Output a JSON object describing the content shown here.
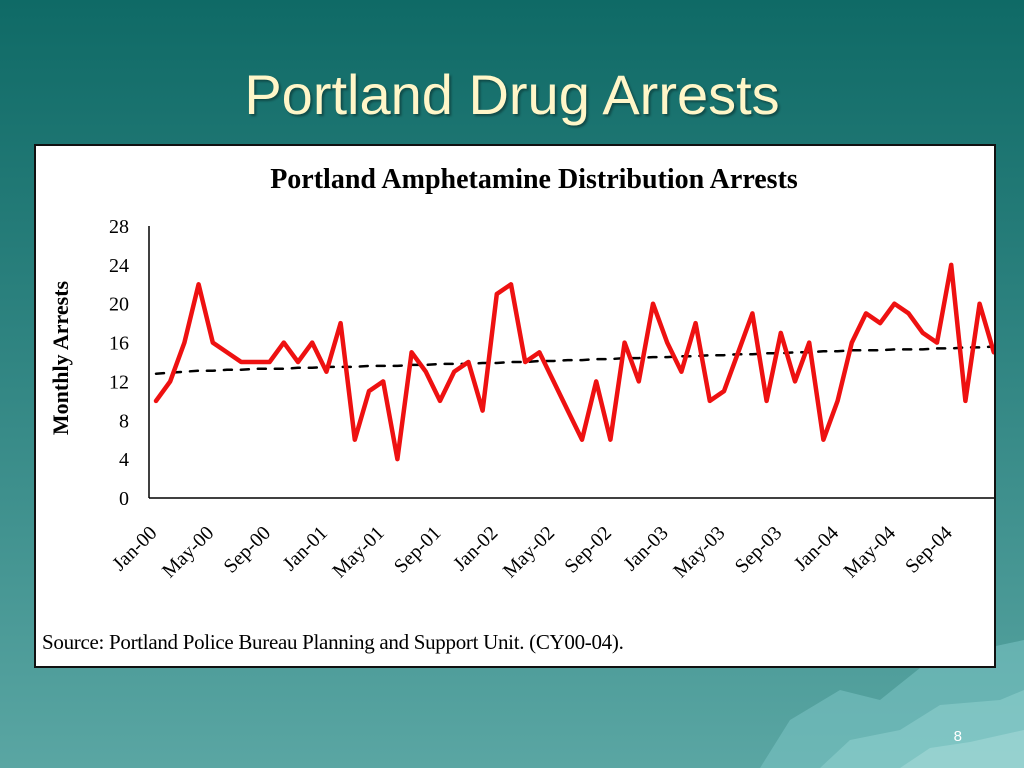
{
  "slide": {
    "title": "Portland Drug Arrests",
    "page_number": "8",
    "source": "Source: Portland Police Bureau Planning and Support Unit. (CY00-04)."
  },
  "colors": {
    "background": "#2f8481",
    "title": "#fff6c8",
    "series": "#ee1111",
    "trend": "#000000"
  },
  "chart_data": {
    "type": "line",
    "title": "Portland Amphetamine Distribution Arrests",
    "ylabel": "Monthly Arrests",
    "xlabel": "",
    "ylim": [
      0,
      28
    ],
    "yticks": [
      0,
      4,
      8,
      12,
      16,
      20,
      24,
      28
    ],
    "x_tick_labels": [
      "Jan-00",
      "May-00",
      "Sep-00",
      "Jan-01",
      "May-01",
      "Sep-01",
      "Jan-02",
      "May-02",
      "Sep-02",
      "Jan-03",
      "May-03",
      "Sep-03",
      "Jan-04",
      "May-04",
      "Sep-04"
    ],
    "x_tick_every": 4,
    "grid": false,
    "legend": "none",
    "series": [
      {
        "style": "solid",
        "color": "#ee1111",
        "values": [
          10,
          12,
          16,
          22,
          16,
          15,
          14,
          14,
          14,
          16,
          14,
          16,
          13,
          18,
          6,
          11,
          12,
          4,
          15,
          13,
          10,
          13,
          14,
          9,
          21,
          22,
          14,
          15,
          12,
          9,
          6,
          12,
          6,
          16,
          12,
          20,
          16,
          13,
          18,
          10,
          11,
          15,
          19,
          10,
          17,
          12,
          16,
          6,
          10,
          16,
          19,
          18,
          20,
          19,
          17,
          16,
          24,
          10,
          20,
          15
        ]
      },
      {
        "style": "dashed",
        "color": "#000000",
        "values": [
          12.8,
          12.9,
          13.0,
          13.1,
          13.1,
          13.2,
          13.2,
          13.3,
          13.3,
          13.3,
          13.4,
          13.4,
          13.5,
          13.5,
          13.5,
          13.6,
          13.6,
          13.6,
          13.7,
          13.7,
          13.8,
          13.8,
          13.8,
          13.9,
          13.9,
          14.0,
          14.0,
          14.1,
          14.1,
          14.2,
          14.2,
          14.3,
          14.3,
          14.4,
          14.4,
          14.5,
          14.5,
          14.6,
          14.6,
          14.7,
          14.7,
          14.8,
          14.8,
          14.9,
          14.9,
          15.0,
          15.0,
          15.1,
          15.1,
          15.2,
          15.2,
          15.2,
          15.3,
          15.3,
          15.3,
          15.4,
          15.4,
          15.5,
          15.5,
          15.6
        ]
      }
    ]
  }
}
